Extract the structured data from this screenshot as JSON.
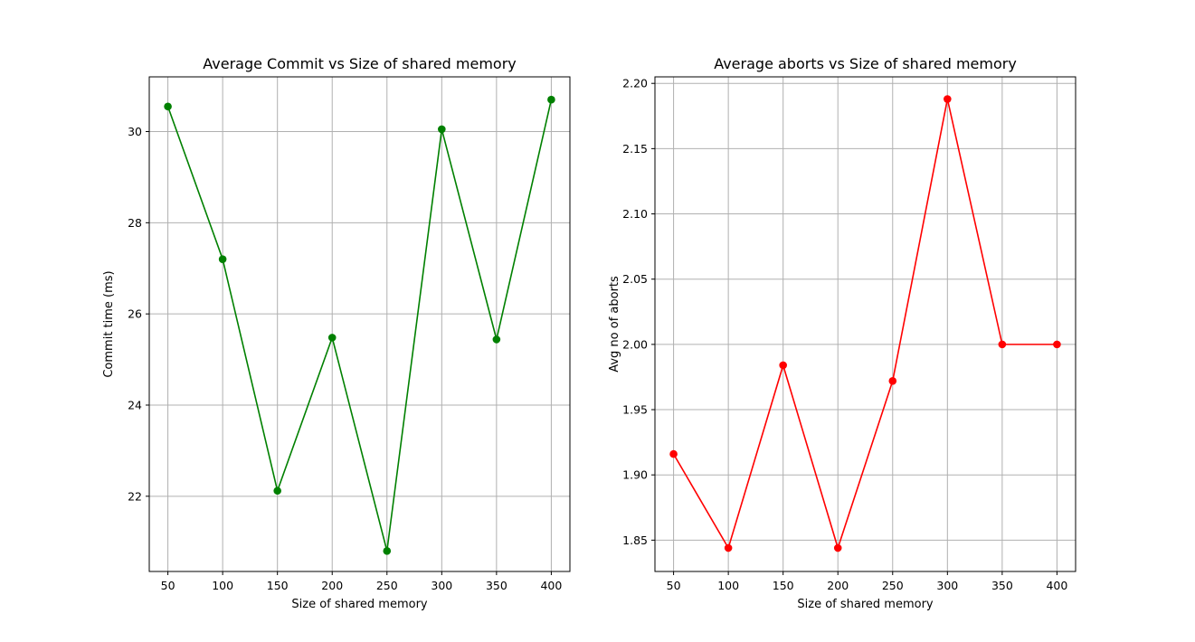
{
  "chart_data": [
    {
      "type": "line",
      "title": "Average Commit vs Size of shared memory",
      "xlabel": "Size of shared memory",
      "ylabel": "Commit time (ms)",
      "x": [
        50,
        100,
        150,
        200,
        250,
        300,
        350,
        400
      ],
      "xticks": [
        50,
        100,
        150,
        200,
        250,
        300,
        350,
        400
      ],
      "yticks": [
        22,
        24,
        26,
        28,
        30
      ],
      "xlim": [
        33,
        417
      ],
      "ylim": [
        20.35,
        31.2
      ],
      "grid": true,
      "marker": "circle",
      "series": [
        {
          "values": [
            30.55,
            27.2,
            22.12,
            25.48,
            20.8,
            30.05,
            25.44,
            30.7
          ],
          "color": "#008000"
        }
      ]
    },
    {
      "type": "line",
      "title": "Average aborts vs Size of shared memory",
      "xlabel": "Size of shared memory",
      "ylabel": "Avg no of aborts",
      "x": [
        50,
        100,
        150,
        200,
        250,
        300,
        350,
        400
      ],
      "xticks": [
        50,
        100,
        150,
        200,
        250,
        300,
        350,
        400
      ],
      "yticks": [
        "1.85",
        "1.90",
        "1.95",
        "2.00",
        "2.05",
        "2.10",
        "2.15",
        "2.20"
      ],
      "xlim": [
        33,
        417
      ],
      "ylim": [
        1.826,
        2.205
      ],
      "grid": true,
      "marker": "circle",
      "series": [
        {
          "values": [
            1.916,
            1.844,
            1.984,
            1.844,
            1.972,
            2.188,
            2.0,
            2.0
          ],
          "color": "#ff0000"
        }
      ]
    }
  ]
}
